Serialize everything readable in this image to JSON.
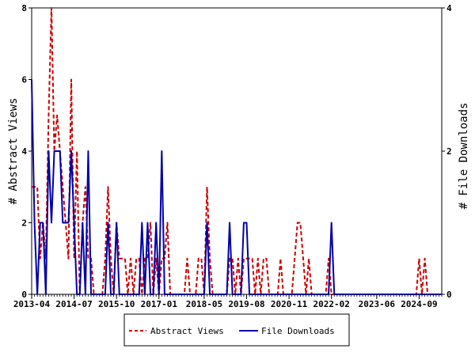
{
  "colors": {
    "abstract_views": "#cc0000",
    "file_downloads": "#0000aa",
    "axis": "#000000",
    "background": "#ffffff"
  },
  "chart_data": {
    "type": "line",
    "title": "",
    "xlabel": "",
    "ylabel_left": "# Abstract Views",
    "ylabel_right": "# File Downloads",
    "ylim_left": [
      0,
      8
    ],
    "ylim_right": [
      0,
      4
    ],
    "left_ticks": [
      "0",
      "2",
      "4",
      "6",
      "8"
    ],
    "right_ticks": [
      "0",
      "2",
      "4"
    ],
    "x_tick_labels": [
      "2013-04",
      "2014-07",
      "2015-10",
      "2017-01",
      "2018-05",
      "2019-08",
      "2020-11",
      "2022-02",
      "2023-06",
      "2024-09"
    ],
    "x_tick_months": [
      "2013-04",
      "2014-07",
      "2015-10",
      "2017-01",
      "2018-05",
      "2019-08",
      "2020-11",
      "2022-02",
      "2023-06",
      "2024-09"
    ],
    "x_range": [
      "2013-04",
      "2025-05"
    ],
    "grid": false,
    "legend_position": "bottom",
    "series": [
      {
        "name": "Abstract Views",
        "axis": "left",
        "style": "dashed",
        "points": [
          [
            "2013-04",
            3
          ],
          [
            "2013-05",
            3
          ],
          [
            "2013-06",
            3
          ],
          [
            "2013-07",
            1
          ],
          [
            "2013-08",
            2
          ],
          [
            "2013-09",
            1
          ],
          [
            "2013-10",
            5
          ],
          [
            "2013-11",
            8
          ],
          [
            "2013-12",
            4
          ],
          [
            "2014-01",
            5
          ],
          [
            "2014-02",
            4
          ],
          [
            "2014-03",
            3
          ],
          [
            "2014-04",
            2
          ],
          [
            "2014-05",
            1
          ],
          [
            "2014-06",
            6
          ],
          [
            "2014-07",
            1
          ],
          [
            "2014-08",
            4
          ],
          [
            "2014-09",
            0
          ],
          [
            "2014-10",
            2
          ],
          [
            "2014-11",
            3
          ],
          [
            "2014-12",
            1
          ],
          [
            "2015-01",
            1
          ],
          [
            "2015-02",
            0
          ],
          [
            "2015-05",
            0
          ],
          [
            "2015-06",
            1
          ],
          [
            "2015-07",
            3
          ],
          [
            "2015-08",
            1
          ],
          [
            "2015-09",
            0
          ],
          [
            "2015-10",
            2
          ],
          [
            "2015-11",
            1
          ],
          [
            "2015-12",
            1
          ],
          [
            "2016-01",
            1
          ],
          [
            "2016-02",
            0
          ],
          [
            "2016-03",
            1
          ],
          [
            "2016-04",
            0
          ],
          [
            "2016-05",
            1
          ],
          [
            "2016-06",
            1
          ],
          [
            "2016-07",
            0
          ],
          [
            "2016-08",
            1
          ],
          [
            "2016-09",
            1
          ],
          [
            "2016-10",
            2
          ],
          [
            "2016-11",
            0
          ],
          [
            "2016-12",
            1
          ],
          [
            "2017-01",
            0
          ],
          [
            "2017-02",
            1
          ],
          [
            "2017-03",
            1
          ],
          [
            "2017-04",
            2
          ],
          [
            "2017-05",
            0
          ],
          [
            "2017-10",
            0
          ],
          [
            "2017-11",
            1
          ],
          [
            "2017-12",
            0
          ],
          [
            "2018-02",
            0
          ],
          [
            "2018-03",
            1
          ],
          [
            "2018-04",
            1
          ],
          [
            "2018-05",
            0
          ],
          [
            "2018-06",
            3
          ],
          [
            "2018-07",
            1
          ],
          [
            "2018-08",
            0
          ],
          [
            "2019-01",
            0
          ],
          [
            "2019-02",
            1
          ],
          [
            "2019-03",
            1
          ],
          [
            "2019-04",
            0
          ],
          [
            "2019-05",
            1
          ],
          [
            "2019-06",
            0
          ],
          [
            "2019-07",
            1
          ],
          [
            "2019-08",
            1
          ],
          [
            "2019-09",
            1
          ],
          [
            "2019-10",
            1
          ],
          [
            "2019-11",
            0
          ],
          [
            "2019-12",
            1
          ],
          [
            "2020-01",
            0
          ],
          [
            "2020-02",
            1
          ],
          [
            "2020-03",
            1
          ],
          [
            "2020-04",
            0
          ],
          [
            "2020-07",
            0
          ],
          [
            "2020-08",
            1
          ],
          [
            "2020-09",
            0
          ],
          [
            "2020-12",
            0
          ],
          [
            "2021-01",
            1
          ],
          [
            "2021-02",
            2
          ],
          [
            "2021-03",
            2
          ],
          [
            "2021-04",
            1
          ],
          [
            "2021-05",
            0
          ],
          [
            "2021-06",
            1
          ],
          [
            "2021-07",
            0
          ],
          [
            "2021-12",
            0
          ],
          [
            "2022-01",
            1
          ],
          [
            "2022-02",
            0
          ],
          [
            "2024-08",
            0
          ],
          [
            "2024-09",
            1
          ],
          [
            "2024-10",
            0
          ],
          [
            "2024-11",
            1
          ],
          [
            "2024-12",
            0
          ]
        ]
      },
      {
        "name": "File Downloads",
        "axis": "right",
        "style": "solid",
        "points": [
          [
            "2013-04",
            3
          ],
          [
            "2013-05",
            1
          ],
          [
            "2013-06",
            0
          ],
          [
            "2013-07",
            1
          ],
          [
            "2013-08",
            1
          ],
          [
            "2013-09",
            0
          ],
          [
            "2013-10",
            2
          ],
          [
            "2013-11",
            1
          ],
          [
            "2013-12",
            2
          ],
          [
            "2014-01",
            2
          ],
          [
            "2014-02",
            2
          ],
          [
            "2014-03",
            1
          ],
          [
            "2014-04",
            1
          ],
          [
            "2014-05",
            1
          ],
          [
            "2014-06",
            2
          ],
          [
            "2014-07",
            1
          ],
          [
            "2014-08",
            0
          ],
          [
            "2014-09",
            0
          ],
          [
            "2014-10",
            1
          ],
          [
            "2014-11",
            0
          ],
          [
            "2014-12",
            2
          ],
          [
            "2015-01",
            0
          ],
          [
            "2015-06",
            0
          ],
          [
            "2015-07",
            1
          ],
          [
            "2015-08",
            0
          ],
          [
            "2015-09",
            0
          ],
          [
            "2015-10",
            1
          ],
          [
            "2015-11",
            0
          ],
          [
            "2016-06",
            0
          ],
          [
            "2016-07",
            1
          ],
          [
            "2016-08",
            0
          ],
          [
            "2016-09",
            1
          ],
          [
            "2016-10",
            0
          ],
          [
            "2016-11",
            0
          ],
          [
            "2016-12",
            1
          ],
          [
            "2017-01",
            0
          ],
          [
            "2017-02",
            2
          ],
          [
            "2017-03",
            0
          ],
          [
            "2018-05",
            0
          ],
          [
            "2018-06",
            1
          ],
          [
            "2018-07",
            0
          ],
          [
            "2019-01",
            0
          ],
          [
            "2019-02",
            1
          ],
          [
            "2019-03",
            0
          ],
          [
            "2019-06",
            0
          ],
          [
            "2019-07",
            1
          ],
          [
            "2019-08",
            1
          ],
          [
            "2019-09",
            0
          ],
          [
            "2022-01",
            0
          ],
          [
            "2022-02",
            1
          ],
          [
            "2022-03",
            0
          ]
        ]
      }
    ]
  }
}
